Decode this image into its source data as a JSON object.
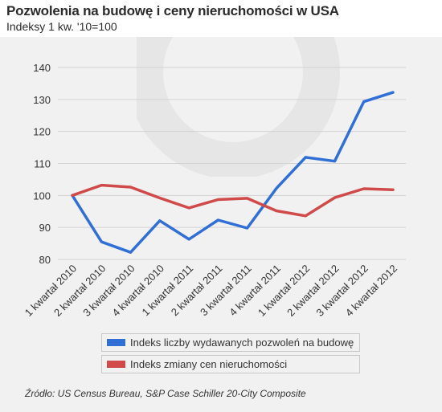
{
  "colors": {
    "permits": "#2f6fd6",
    "prices": "#d04a4a",
    "grid": "#d2d2d2",
    "text": "#333333"
  },
  "legend": {
    "permits_label": "Indeks liczby wydawanych pozwoleń na budowę",
    "prices_label": "Indeks zmiany cen nieruchomości"
  },
  "source": "Źródło: US Census Bureau, S&P Case Schiller 20-City Composite",
  "chart_data": {
    "type": "line",
    "title": "Pozwolenia na budowę i ceny nieruchomości w USA",
    "subtitle": "Indeksy 1 kw. '10=100",
    "xlabel": "",
    "ylabel": "",
    "ylim": [
      80,
      140
    ],
    "yticks": [
      80,
      90,
      100,
      110,
      120,
      130,
      140
    ],
    "grid": true,
    "categories": [
      "1 kwartał 2010",
      "2 kwartał 2010",
      "3 kwartał 2010",
      "4 kwartał 2010",
      "1 kwartał 2011",
      "2 kwartał 2011",
      "3 kwartał 2011",
      "4 kwartał 2011",
      "1 kwartał 2012",
      "2 kwartał 2012",
      "3 kwartał 2012",
      "4 kwartał 2012"
    ],
    "series": [
      {
        "name": "Indeks liczby wydawanych pozwoleń na budowę",
        "color": "#2f6fd6",
        "values": [
          100,
          85.5,
          82.2,
          92.1,
          86.3,
          92.3,
          89.8,
          102.2,
          111.9,
          110.7,
          129.3,
          132.2
        ]
      },
      {
        "name": "Indeks zmiany cen nieruchomości",
        "color": "#d04a4a",
        "values": [
          100,
          103.2,
          102.6,
          99.2,
          96.1,
          98.7,
          99.1,
          95.2,
          93.6,
          99.3,
          102.1,
          101.8
        ]
      }
    ]
  }
}
